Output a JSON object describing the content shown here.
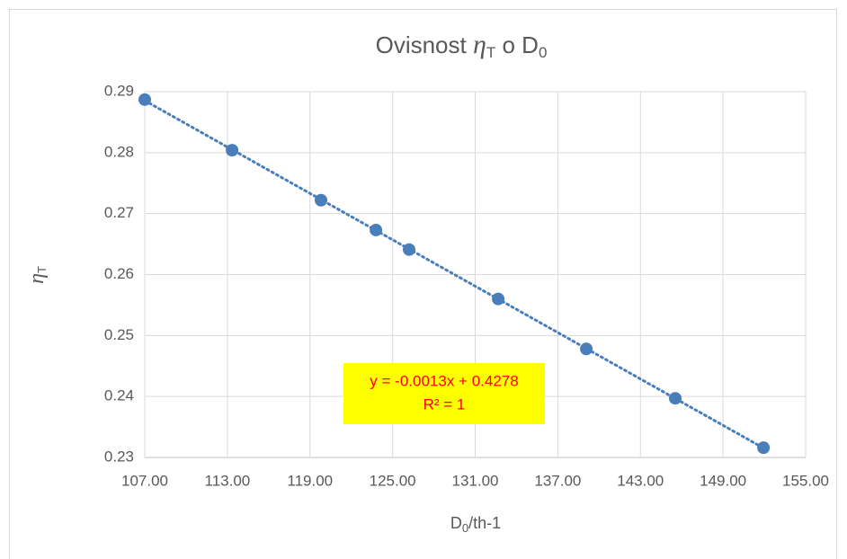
{
  "chart_data": {
    "type": "scatter",
    "title_parts": [
      "Ovisnost ",
      "η",
      "T",
      " o D",
      "0"
    ],
    "x_label_parts": [
      "D",
      "0",
      "/th-1"
    ],
    "y_label_parts": [
      "η",
      "T"
    ],
    "x": [
      107.0,
      113.34,
      119.8,
      123.79,
      126.2,
      132.67,
      139.07,
      145.53,
      151.94
    ],
    "values": [
      0.2887,
      0.2804,
      0.2722,
      0.2673,
      0.2641,
      0.256,
      0.2478,
      0.2397,
      0.2316
    ],
    "color": "#4a7ebb",
    "trendline": true,
    "annotation_lines": [
      "y = -0.0013x + 0.4278",
      "R² = 1"
    ],
    "annotation_background": "#ffff00",
    "xlim": [
      107,
      155
    ],
    "xticks": [
      {
        "value": 107,
        "label": "107.00"
      },
      {
        "value": 113,
        "label": "113.00"
      },
      {
        "value": 119,
        "label": "119.00"
      },
      {
        "value": 125,
        "label": "125.00"
      },
      {
        "value": 131,
        "label": "131.00"
      },
      {
        "value": 137,
        "label": "137.00"
      },
      {
        "value": 143,
        "label": "143.00"
      },
      {
        "value": 149,
        "label": "149.00"
      },
      {
        "value": 155,
        "label": "155.00"
      }
    ],
    "ylim": [
      0.23,
      0.29
    ],
    "yticks": [
      0.23,
      0.24,
      0.25,
      0.26,
      0.27,
      0.28,
      0.29
    ],
    "grid": true
  }
}
